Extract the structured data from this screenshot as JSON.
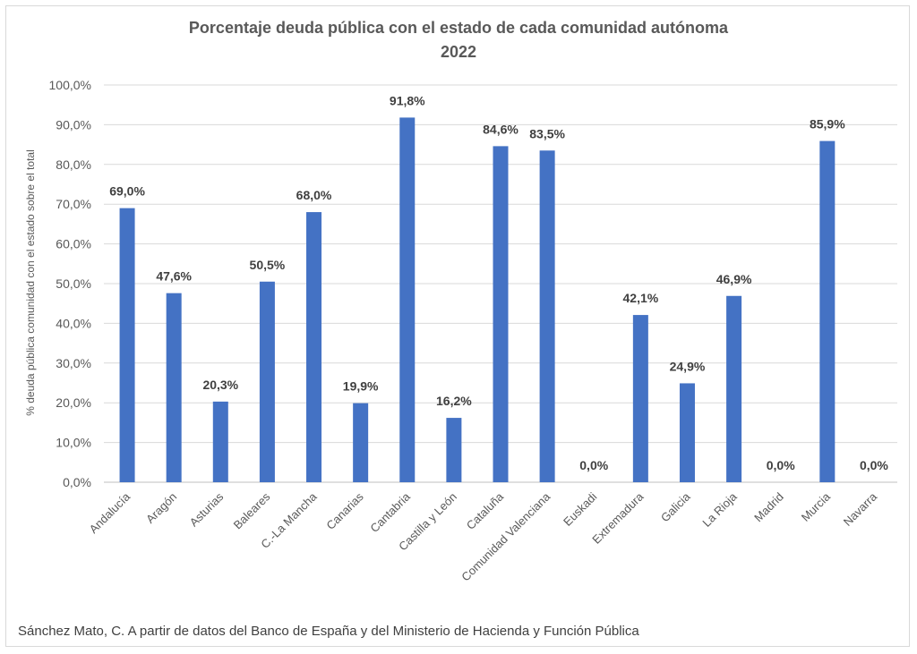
{
  "chart_data": {
    "type": "bar",
    "title": "Porcentaje deuda pública con el estado de cada comunidad autónoma",
    "subtitle": "2022",
    "ylabel": "% deuda pública comunidad con el estado sobre el total",
    "xlabel": "",
    "ylim": [
      0,
      100
    ],
    "ytick_step": 10,
    "grid": true,
    "bar_color": "#4472c4",
    "categories": [
      "Andalucía",
      "Aragón",
      "Asturias",
      "Baleares",
      "C.-La Mancha",
      "Canarias",
      "Cantabria",
      "Castilla y León",
      "Cataluña",
      "Comunidad Valenciana",
      "Euskadi",
      "Extremadura",
      "Galicia",
      "La Rioja",
      "Madrid",
      "Murcia",
      "Navarra"
    ],
    "values": [
      69.0,
      47.6,
      20.3,
      50.5,
      68.0,
      19.9,
      91.8,
      16.2,
      84.6,
      83.5,
      0.0,
      42.1,
      24.9,
      46.9,
      0.0,
      85.9,
      0.0
    ],
    "data_labels": [
      "69,0%",
      "47,6%",
      "20,3%",
      "50,5%",
      "68,0%",
      "19,9%",
      "91,8%",
      "16,2%",
      "84,6%",
      "83,5%",
      "0,0%",
      "42,1%",
      "24,9%",
      "46,9%",
      "0,0%",
      "85,9%",
      "0,0%"
    ],
    "ytick_labels": [
      "0,0%",
      "10,0%",
      "20,0%",
      "30,0%",
      "40,0%",
      "50,0%",
      "60,0%",
      "70,0%",
      "80,0%",
      "90,0%",
      "100,0%"
    ]
  },
  "source": "Sánchez Mato, C.  A partir de datos del Banco de España y del Ministerio de Hacienda y Función Pública"
}
